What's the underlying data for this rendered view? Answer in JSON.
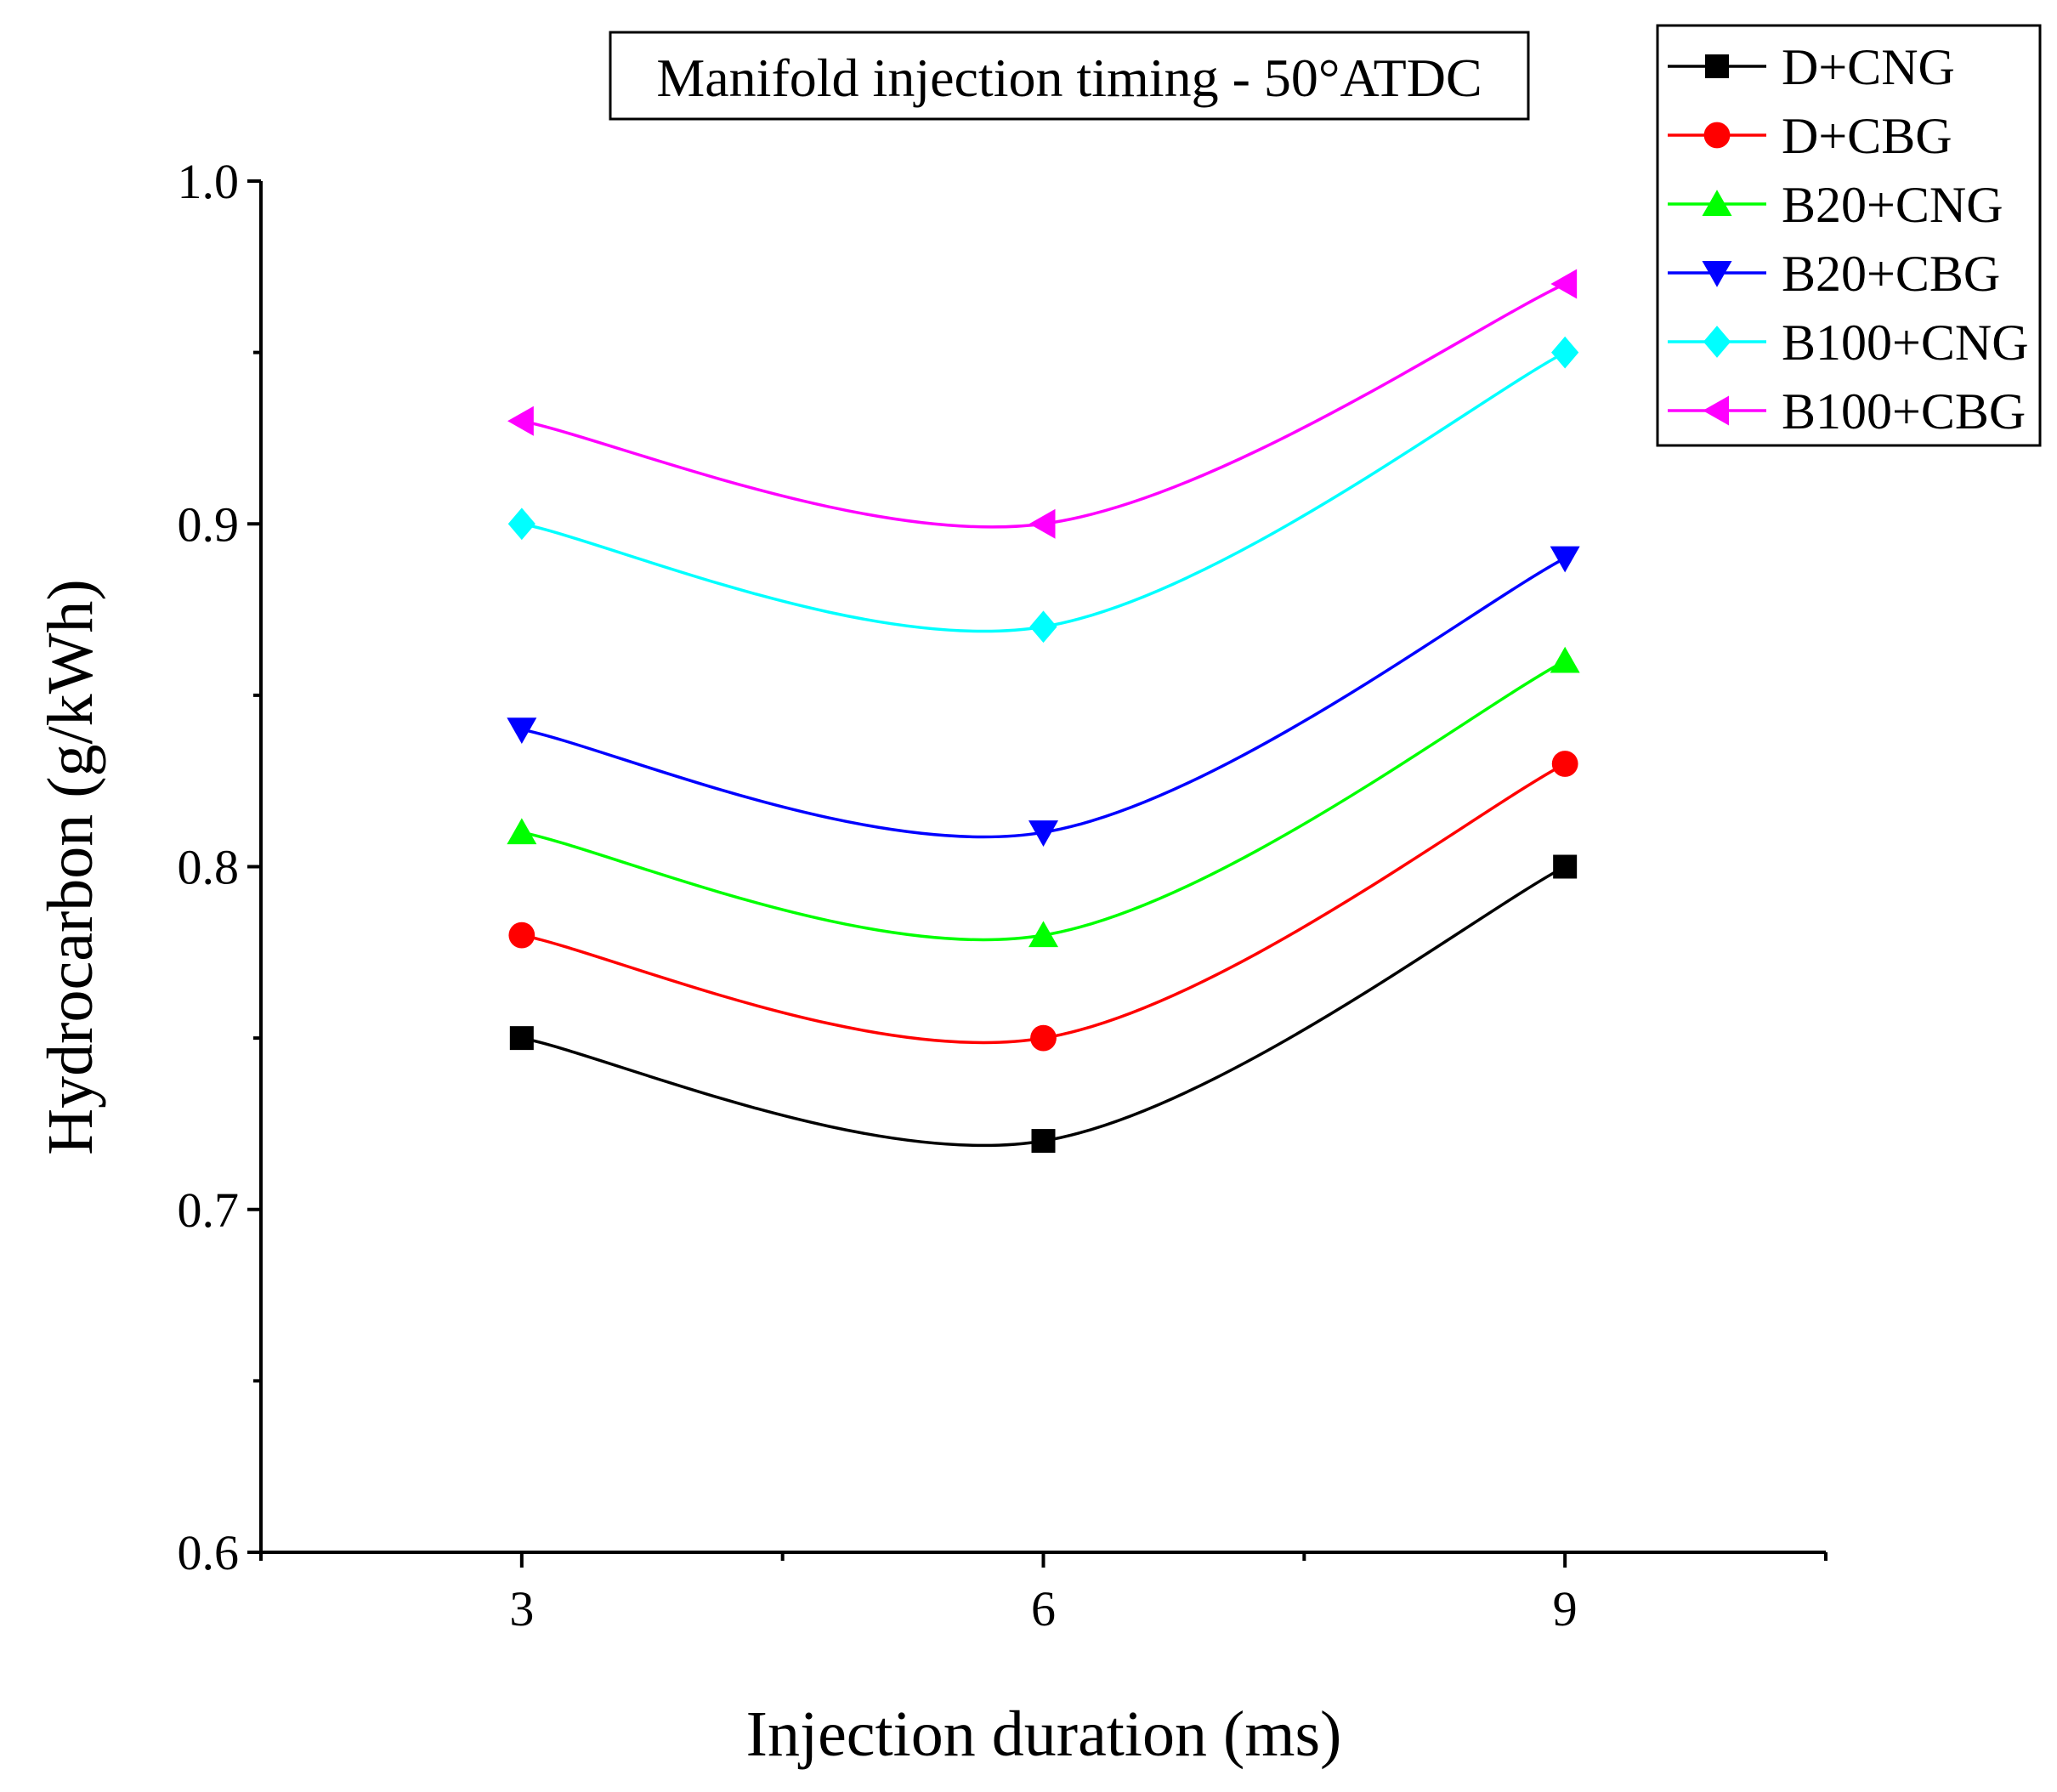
{
  "chart_data": {
    "type": "line",
    "title": "Manifold injection timing - 50°ATDC",
    "xlabel": "Injection duration (ms)",
    "ylabel": "Hydrocarbon (g/kWh)",
    "x": [
      3,
      6,
      9
    ],
    "x_ticks": [
      3,
      6,
      9
    ],
    "x_tick_labels": [
      "3",
      "6",
      "9"
    ],
    "xlim": [
      1.5,
      10.5
    ],
    "y_ticks": [
      0.6,
      0.7,
      0.8,
      0.9,
      1.0
    ],
    "y_tick_labels": [
      "0.6",
      "0.7",
      "0.8",
      "0.9",
      "1.0"
    ],
    "ylim": [
      0.6,
      1.0
    ],
    "grid": false,
    "legend_position": "top-right outside",
    "series": [
      {
        "name": "D+CNG",
        "values": [
          0.75,
          0.72,
          0.8
        ],
        "color": "#000000",
        "marker": "square"
      },
      {
        "name": "D+CBG",
        "values": [
          0.78,
          0.75,
          0.83
        ],
        "color": "#ff0000",
        "marker": "circle"
      },
      {
        "name": "B20+CNG",
        "values": [
          0.81,
          0.78,
          0.86
        ],
        "color": "#00ff00",
        "marker": "triangle-up"
      },
      {
        "name": "B20+CBG",
        "values": [
          0.84,
          0.81,
          0.89
        ],
        "color": "#0000ff",
        "marker": "triangle-down"
      },
      {
        "name": "B100+CNG",
        "values": [
          0.9,
          0.87,
          0.95
        ],
        "color": "#00ffff",
        "marker": "diamond"
      },
      {
        "name": "B100+CBG",
        "values": [
          0.93,
          0.9,
          0.97
        ],
        "color": "#ff00ff",
        "marker": "triangle-left"
      }
    ]
  }
}
